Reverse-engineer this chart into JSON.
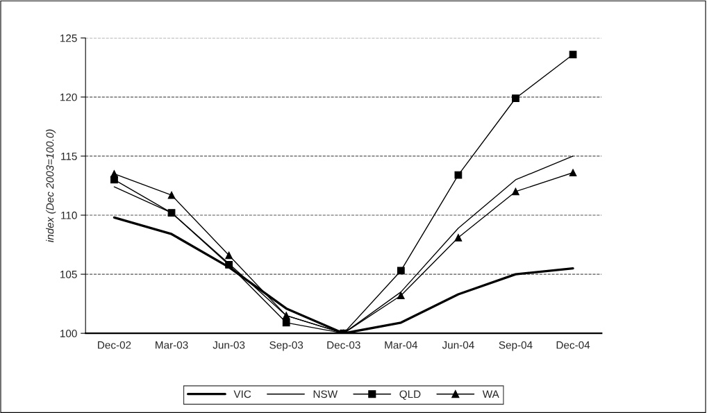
{
  "chart_data": {
    "type": "line",
    "ylabel": "index (Dec 2003=100.0)",
    "categories": [
      "Dec-02",
      "Mar-03",
      "Jun-03",
      "Sep-03",
      "Dec-03",
      "Mar-04",
      "Jun-04",
      "Sep-04",
      "Dec-04"
    ],
    "series": [
      {
        "name": "VIC",
        "color": "#000000",
        "marker": "none",
        "values": [
          109.8,
          108.4,
          105.6,
          102.1,
          100,
          100.9,
          103.3,
          105.0,
          105.5
        ]
      },
      {
        "name": "NSW",
        "color": "#000000",
        "marker": "none",
        "values": [
          112.4,
          110.2,
          105.9,
          101.5,
          100,
          103.5,
          108.9,
          113.0,
          115.0
        ]
      },
      {
        "name": "QLD",
        "color": "#000000",
        "marker": "square",
        "values": [
          113.0,
          110.2,
          105.8,
          100.9,
          100,
          105.3,
          113.4,
          119.9,
          123.6
        ]
      },
      {
        "name": "WA",
        "color": "#000000",
        "marker": "triangle",
        "values": [
          113.5,
          111.7,
          106.6,
          101.5,
          100,
          103.2,
          108.1,
          112.0,
          113.6
        ]
      }
    ],
    "ylim": [
      100,
      125
    ],
    "yticks": [
      100,
      105,
      110,
      115,
      120,
      125
    ],
    "grid": "y",
    "legend": "bottom",
    "line_style": "solid"
  }
}
